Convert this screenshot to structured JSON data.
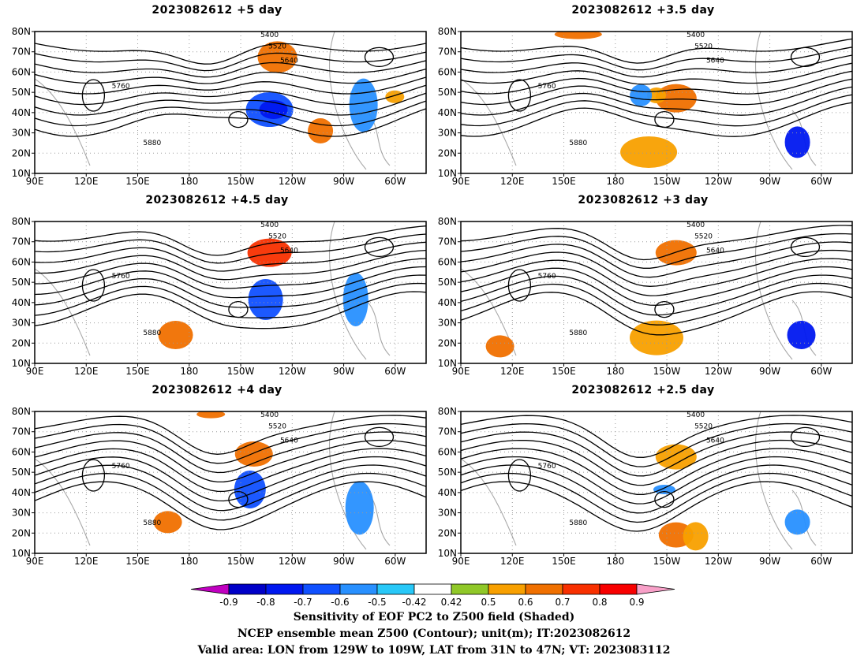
{
  "panels": [
    {
      "title": "2023082612 +5 day"
    },
    {
      "title": "2023082612 +3.5 day"
    },
    {
      "title": "2023082612 +4.5 day"
    },
    {
      "title": "2023082612 +3 day"
    },
    {
      "title": "2023082612 +4 day"
    },
    {
      "title": "2023082612 +2.5 day"
    }
  ],
  "axes": {
    "lat_labels": [
      "80N",
      "70N",
      "60N",
      "50N",
      "40N",
      "30N",
      "20N",
      "10N"
    ],
    "lon_labels": [
      "90E",
      "120E",
      "150E",
      "180",
      "150W",
      "120W",
      "90W",
      "60W"
    ]
  },
  "contour_labels": [
    "5400",
    "5520",
    "5640",
    "5760",
    "5880"
  ],
  "colorbar": {
    "ticks": [
      "-0.9",
      "-0.8",
      "-0.7",
      "-0.6",
      "-0.5",
      "-0.42",
      "0.42",
      "0.5",
      "0.6",
      "0.7",
      "0.8",
      "0.9"
    ],
    "colors": [
      "#c000c0",
      "#0000c8",
      "#0018f0",
      "#1050ff",
      "#2890ff",
      "#28c8f8",
      "#ffffff",
      "#90c828",
      "#f8a000",
      "#f07000",
      "#f83000",
      "#f80000",
      "#f8a0c8"
    ]
  },
  "caption": {
    "line1": "Sensitivity of EOF PC2 to Z500 field (Shaded)",
    "line2": "NCEP ensemble mean Z500 (Contour); unit(m); IT:2023082612",
    "line3": "Valid area: LON from 129W to 109W, LAT from 31N to 47N; VT: 2023083112"
  }
}
